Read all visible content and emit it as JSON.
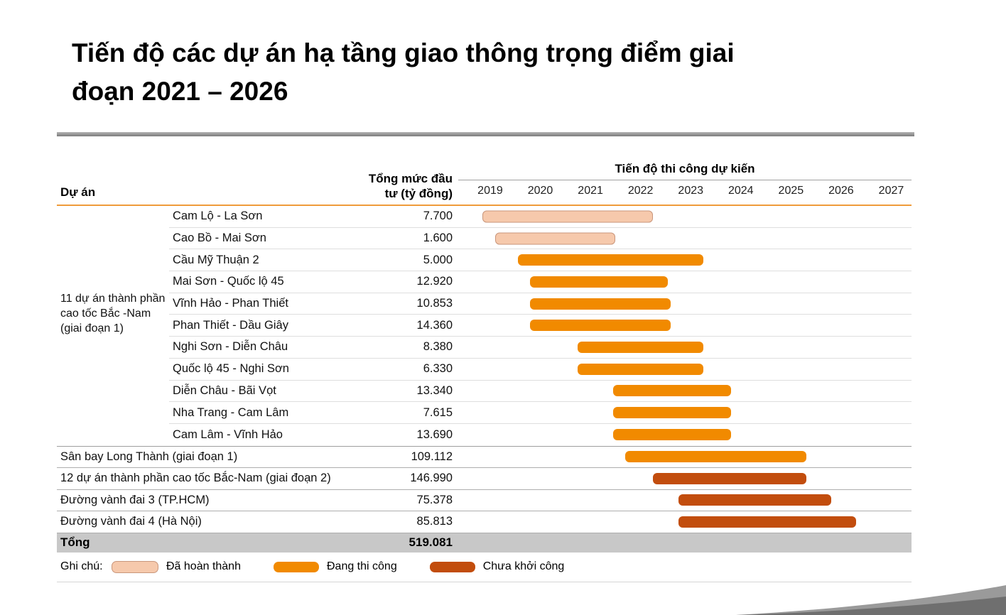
{
  "page": {
    "title_line1": "Tiến độ các dự án hạ tầng giao thông trọng điểm giai",
    "title_line2": "đoạn 2021 – 2026"
  },
  "table": {
    "col_project": "Dự án",
    "col_investment_line1": "Tổng mức đầu",
    "col_investment_line2": "tư (tỷ đồng)",
    "timeline_title": "Tiến độ thi công dự kiến",
    "group_label": "11 dự án thành phần cao tốc Bắc -Nam (giai đoạn 1)",
    "total_label": "Tổng",
    "total_value": "519.081"
  },
  "legend": {
    "label": "Ghi chú:",
    "items": [
      {
        "label": "Đã hoàn thành",
        "status": "completed",
        "color": "#F6C9AC"
      },
      {
        "label": "Đang thi công",
        "status": "in_progress",
        "color": "#F18A00"
      },
      {
        "label": "Chưa khởi công",
        "status": "not_started",
        "color": "#C24D0D"
      }
    ]
  },
  "chart_data": {
    "type": "gantt",
    "title": "Tiến độ các dự án hạ tầng giao thông trọng điểm giai đoạn 2021 – 2026",
    "axis": {
      "ticks": [
        "2019",
        "2020",
        "2021",
        "2022",
        "2023",
        "2024",
        "2025",
        "2026",
        "2027"
      ],
      "origin_year": 2019,
      "origin_offset_pct": 7.05,
      "year_width_pct": 11.06
    },
    "rows": [
      {
        "name": "Cam Lộ - La Sơn",
        "investment": "7.700",
        "status": "completed",
        "group": "group1",
        "start": 2018.85,
        "end": 2022.25
      },
      {
        "name": "Cao Bồ - Mai Sơn",
        "investment": "1.600",
        "status": "completed",
        "group": "group1",
        "start": 2019.1,
        "end": 2021.5
      },
      {
        "name": "Cầu Mỹ Thuận 2",
        "investment": "5.000",
        "status": "in_progress",
        "group": "group1",
        "start": 2019.55,
        "end": 2023.25
      },
      {
        "name": "Mai Sơn - Quốc lộ 45",
        "investment": "12.920",
        "status": "in_progress",
        "group": "group1",
        "start": 2019.8,
        "end": 2022.55
      },
      {
        "name": "Vĩnh Hảo - Phan Thiết",
        "investment": "10.853",
        "status": "in_progress",
        "group": "group1",
        "start": 2019.8,
        "end": 2022.6
      },
      {
        "name": "Phan Thiết - Dầu Giây",
        "investment": "14.360",
        "status": "in_progress",
        "group": "group1",
        "start": 2019.8,
        "end": 2022.6
      },
      {
        "name": "Nghi Sơn - Diễn Châu",
        "investment": "8.380",
        "status": "in_progress",
        "group": "group1",
        "start": 2020.75,
        "end": 2023.25
      },
      {
        "name": "Quốc lộ 45 - Nghi Sơn",
        "investment": "6.330",
        "status": "in_progress",
        "group": "group1",
        "start": 2020.75,
        "end": 2023.25
      },
      {
        "name": "Diễn Châu - Bãi Vọt",
        "investment": "13.340",
        "status": "in_progress",
        "group": "group1",
        "start": 2021.45,
        "end": 2023.8
      },
      {
        "name": "Nha Trang - Cam Lâm",
        "investment": "7.615",
        "status": "in_progress",
        "group": "group1",
        "start": 2021.45,
        "end": 2023.8
      },
      {
        "name": "Cam Lâm - Vĩnh Hảo",
        "investment": "13.690",
        "status": "in_progress",
        "group": "group1",
        "start": 2021.45,
        "end": 2023.8
      },
      {
        "name": "Sân bay Long Thành (giai đoạn 1)",
        "investment": "109.112",
        "status": "in_progress",
        "group": null,
        "start": 2021.7,
        "end": 2025.3
      },
      {
        "name": "12 dự án thành phần cao tốc Bắc-Nam (giai đoạn 2)",
        "investment": "146.990",
        "status": "not_started",
        "group": null,
        "start": 2022.25,
        "end": 2025.3
      },
      {
        "name": "Đường vành đai 3 (TP.HCM)",
        "investment": "75.378",
        "status": "not_started",
        "group": null,
        "start": 2022.75,
        "end": 2025.8
      },
      {
        "name": "Đường vành đai 4 (Hà Nội)",
        "investment": "85.813",
        "status": "not_started",
        "group": null,
        "start": 2022.75,
        "end": 2026.3
      }
    ]
  }
}
